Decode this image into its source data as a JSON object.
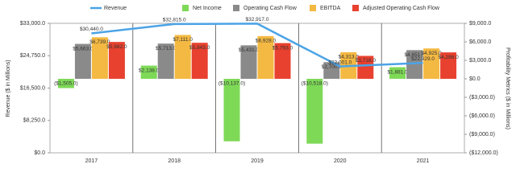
{
  "chart_data": {
    "type": "bar",
    "categories": [
      "2017",
      "2018",
      "2019",
      "2020",
      "2021"
    ],
    "y_label": "Revenue ($ in Millions)",
    "y2_label": "Profitability Metrics ($ in Millions)",
    "ylim": [
      0,
      33000
    ],
    "yticks": [
      {
        "value": 0,
        "label": "$0.0"
      },
      {
        "value": 8250,
        "label": "$8,250.0"
      },
      {
        "value": 16500,
        "label": "$16,500.0"
      },
      {
        "value": 24750,
        "label": "$24,750.0"
      },
      {
        "value": 33000,
        "label": "$33,000.0"
      }
    ],
    "y2lim": [
      -12000,
      9000
    ],
    "y2ticks": [
      {
        "value": -12000,
        "label": "($12,000.0)"
      },
      {
        "value": -9000,
        "label": "($9,000.0)"
      },
      {
        "value": -6000,
        "label": "($6,000.0)"
      },
      {
        "value": -3000,
        "label": "($3,000.0)"
      },
      {
        "value": 0,
        "label": "$0.0"
      },
      {
        "value": 3000,
        "label": "$3,000.0"
      },
      {
        "value": 6000,
        "label": "$6,000.0"
      },
      {
        "value": 9000,
        "label": "$9,000.0"
      }
    ],
    "series": [
      {
        "name": "Revenue",
        "type": "line",
        "axis": "y",
        "color": "#4ba3e6",
        "values": [
          30440,
          32815,
          32917,
          22001,
          22929
        ],
        "value_labels": [
          "$30,440.0",
          "$32,815.0",
          "$32,917.0",
          "$22,001.0",
          "$22,929.0"
        ]
      },
      {
        "name": "Net Income",
        "type": "bar",
        "axis": "y2",
        "color": "#7ed957",
        "values": [
          -1505,
          2138,
          -10137,
          -10518,
          1881
        ],
        "value_labels": [
          "($1,505.0)",
          "$2,138.0",
          "($10,137.0)",
          "($10,518.0)",
          "$1,881.0"
        ]
      },
      {
        "name": "Operating Cash Flow",
        "type": "bar",
        "axis": "y2",
        "color": "#8a8a8a",
        "values": [
          5663,
          5713,
          5431,
          2700,
          4651
        ],
        "value_labels": [
          "$5,663.0",
          "$5,713.0",
          "$5,431.0",
          "$2,700.0",
          "$4,651.0"
        ]
      },
      {
        "name": "EBITDA",
        "type": "bar",
        "axis": "y2",
        "color": "#f4b942",
        "values": [
          6739,
          7111,
          6928,
          4313,
          4925
        ],
        "value_labels": [
          "$6,739.0",
          "$7,111.0",
          "$6,928.0",
          "$4,313.0",
          "$4,925.0"
        ]
      },
      {
        "name": "Adjusted Operating Cash Flow",
        "type": "bar",
        "axis": "y2",
        "color": "#e8412f",
        "values": [
          5982,
          5843,
          5793,
          3716,
          4286
        ],
        "value_labels": [
          "$5,982.0",
          "$5,843.0",
          "$5,793.0",
          "$3,716.0",
          "$4,286.0"
        ]
      }
    ]
  }
}
